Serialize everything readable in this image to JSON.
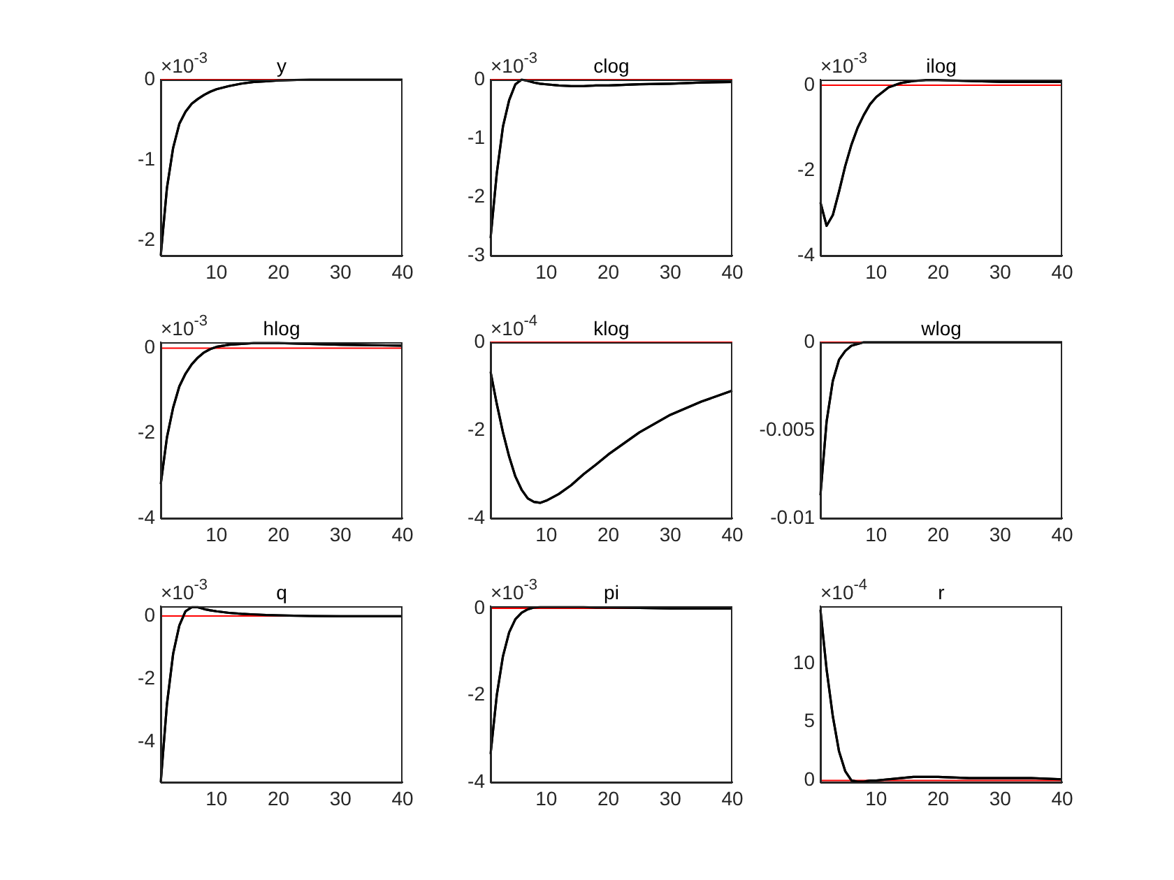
{
  "chart_data": [
    {
      "type": "line",
      "title": "y",
      "annotations": [
        "×10$^{-3}$"
      ],
      "x": [
        1,
        2,
        3,
        4,
        5,
        6,
        7,
        8,
        9,
        10,
        12,
        14,
        16,
        18,
        20,
        25,
        30,
        35,
        40
      ],
      "xlim": [
        1,
        40
      ],
      "xticks": [
        10,
        20,
        30,
        40
      ],
      "ylim": [
        -2.19,
        0
      ],
      "yticks": [
        -2,
        -1,
        0
      ],
      "ref_lines": [
        {
          "axis": "y",
          "value": 0,
          "color": "#ff0000"
        }
      ],
      "series": [
        {
          "color": "#000000",
          "values": [
            -2.19,
            -1.35,
            -0.85,
            -0.55,
            -0.4,
            -0.3,
            -0.24,
            -0.19,
            -0.15,
            -0.12,
            -0.08,
            -0.05,
            -0.03,
            -0.02,
            -0.01,
            0,
            0,
            0,
            0
          ]
        }
      ]
    },
    {
      "type": "line",
      "title": "clog",
      "annotations": [
        "×10$^{-3}$"
      ],
      "x": [
        1,
        2,
        3,
        4,
        5,
        6,
        7,
        8,
        9,
        10,
        12,
        14,
        16,
        18,
        20,
        25,
        30,
        35,
        40
      ],
      "xlim": [
        1,
        40
      ],
      "xticks": [
        10,
        20,
        30,
        40
      ],
      "ylim": [
        -3,
        0
      ],
      "yticks": [
        -3,
        -2,
        -1,
        0
      ],
      "ref_lines": [
        {
          "axis": "y",
          "value": 0,
          "color": "#ff0000"
        }
      ],
      "series": [
        {
          "color": "#000000",
          "values": [
            -2.7,
            -1.6,
            -0.8,
            -0.35,
            -0.08,
            0,
            -0.02,
            -0.05,
            -0.07,
            -0.08,
            -0.1,
            -0.11,
            -0.11,
            -0.1,
            -0.1,
            -0.08,
            -0.07,
            -0.05,
            -0.04
          ]
        }
      ]
    },
    {
      "type": "line",
      "title": "ilog",
      "annotations": [
        "×10$^{-3}$"
      ],
      "x": [
        1,
        2,
        3,
        4,
        5,
        6,
        7,
        8,
        9,
        10,
        12,
        14,
        16,
        18,
        20,
        25,
        30,
        35,
        40
      ],
      "xlim": [
        1,
        40
      ],
      "xticks": [
        10,
        20,
        30,
        40
      ],
      "ylim": [
        -4,
        0.13
      ],
      "yticks": [
        -4,
        -2,
        0
      ],
      "ref_lines": [
        {
          "axis": "y",
          "value": 0,
          "color": "#ff0000"
        }
      ],
      "series": [
        {
          "color": "#000000",
          "values": [
            -2.75,
            -3.3,
            -3.05,
            -2.5,
            -1.9,
            -1.4,
            -1.0,
            -0.7,
            -0.45,
            -0.28,
            -0.05,
            0.05,
            0.1,
            0.12,
            0.12,
            0.1,
            0.08,
            0.08,
            0.08
          ]
        }
      ]
    },
    {
      "type": "line",
      "title": "hlog",
      "annotations": [
        "×10$^{-3}$"
      ],
      "x": [
        1,
        2,
        3,
        4,
        5,
        6,
        7,
        8,
        9,
        10,
        12,
        14,
        16,
        18,
        20,
        25,
        30,
        35,
        40
      ],
      "xlim": [
        1,
        40
      ],
      "xticks": [
        10,
        20,
        30,
        40
      ],
      "ylim": [
        -4,
        0.14
      ],
      "yticks": [
        -4,
        -2,
        0
      ],
      "ref_lines": [
        {
          "axis": "y",
          "value": 0,
          "color": "#ff0000"
        }
      ],
      "series": [
        {
          "color": "#000000",
          "values": [
            -3.2,
            -2.1,
            -1.4,
            -0.9,
            -0.6,
            -0.38,
            -0.22,
            -0.1,
            -0.02,
            0.03,
            0.08,
            0.1,
            0.12,
            0.12,
            0.12,
            0.1,
            0.08,
            0.07,
            0.06
          ]
        }
      ]
    },
    {
      "type": "line",
      "title": "klog",
      "annotations": [
        "×10$^{-4}$"
      ],
      "x": [
        1,
        2,
        3,
        4,
        5,
        6,
        7,
        8,
        9,
        10,
        12,
        14,
        16,
        18,
        20,
        25,
        30,
        35,
        40
      ],
      "xlim": [
        1,
        40
      ],
      "xticks": [
        10,
        20,
        30,
        40
      ],
      "ylim": [
        -4,
        0
      ],
      "yticks": [
        -4,
        -2,
        0
      ],
      "ref_lines": [
        {
          "axis": "y",
          "value": 0,
          "color": "#ff0000"
        }
      ],
      "series": [
        {
          "color": "#000000",
          "values": [
            -0.67,
            -1.4,
            -2.05,
            -2.6,
            -3.05,
            -3.35,
            -3.55,
            -3.63,
            -3.65,
            -3.6,
            -3.45,
            -3.25,
            -3.0,
            -2.78,
            -2.55,
            -2.05,
            -1.65,
            -1.35,
            -1.1
          ]
        }
      ]
    },
    {
      "type": "line",
      "title": "wlog",
      "x": [
        1,
        2,
        3,
        4,
        5,
        6,
        7,
        8,
        9,
        10,
        12,
        14,
        16,
        18,
        20,
        25,
        30,
        35,
        40
      ],
      "xlim": [
        1,
        40
      ],
      "xticks": [
        10,
        20,
        30,
        40
      ],
      "ylim": [
        -0.01,
        0
      ],
      "yticks": [
        -0.01,
        -0.005,
        0
      ],
      "ref_lines": [
        {
          "axis": "y",
          "value": 0,
          "color": "#ff0000"
        }
      ],
      "series": [
        {
          "color": "#000000",
          "values": [
            -0.0087,
            -0.0045,
            -0.0022,
            -0.001,
            -0.0005,
            -0.0002,
            -0.0001,
            0,
            0,
            0,
            0,
            0,
            0,
            0,
            0,
            0,
            0,
            0,
            0
          ]
        }
      ]
    },
    {
      "type": "line",
      "title": "q",
      "annotations": [
        "×10$^{-3}$"
      ],
      "x": [
        1,
        2,
        3,
        4,
        5,
        6,
        7,
        8,
        9,
        10,
        12,
        14,
        16,
        18,
        20,
        25,
        30,
        35,
        40
      ],
      "xlim": [
        1,
        40
      ],
      "xticks": [
        10,
        20,
        30,
        40
      ],
      "ylim": [
        -5.27,
        0.31
      ],
      "yticks": [
        -4,
        -2,
        0
      ],
      "ref_lines": [
        {
          "axis": "y",
          "value": 0,
          "color": "#ff0000"
        }
      ],
      "series": [
        {
          "color": "#000000",
          "values": [
            -5.27,
            -2.8,
            -1.2,
            -0.3,
            0.15,
            0.28,
            0.28,
            0.22,
            0.18,
            0.15,
            0.1,
            0.07,
            0.05,
            0.03,
            0.02,
            0,
            -0.01,
            -0.01,
            -0.01
          ]
        }
      ]
    },
    {
      "type": "line",
      "title": "pi",
      "annotations": [
        "×10$^{-3}$"
      ],
      "x": [
        1,
        2,
        3,
        4,
        5,
        6,
        7,
        8,
        9,
        10,
        12,
        14,
        16,
        18,
        20,
        25,
        30,
        35,
        40
      ],
      "xlim": [
        1,
        40
      ],
      "xticks": [
        10,
        20,
        30,
        40
      ],
      "ylim": [
        -4,
        0.05
      ],
      "yticks": [
        -4,
        -2,
        0
      ],
      "ref_lines": [
        {
          "axis": "y",
          "value": 0,
          "color": "#ff0000"
        }
      ],
      "series": [
        {
          "color": "#000000",
          "values": [
            -3.35,
            -2.0,
            -1.1,
            -0.55,
            -0.25,
            -0.1,
            -0.02,
            0.02,
            0.03,
            0.03,
            0.03,
            0.03,
            0.03,
            0.02,
            0.02,
            0.01,
            0,
            0,
            0
          ]
        }
      ]
    },
    {
      "type": "line",
      "title": "r",
      "annotations": [
        "×10$^{-4}$"
      ],
      "x": [
        1,
        2,
        3,
        4,
        5,
        6,
        7,
        8,
        9,
        10,
        12,
        14,
        16,
        18,
        20,
        25,
        30,
        35,
        40
      ],
      "xlim": [
        1,
        40
      ],
      "xticks": [
        10,
        20,
        30,
        40
      ],
      "ylim": [
        -0.15,
        14.9
      ],
      "yticks": [
        0,
        5,
        10
      ],
      "ref_lines": [
        {
          "axis": "y",
          "value": 0,
          "color": "#ff0000"
        }
      ],
      "series": [
        {
          "color": "#000000",
          "values": [
            14.6,
            9.5,
            5.5,
            2.5,
            0.8,
            0,
            -0.1,
            -0.1,
            0,
            0,
            0.1,
            0.2,
            0.3,
            0.3,
            0.3,
            0.2,
            0.2,
            0.2,
            0.1
          ]
        }
      ]
    }
  ]
}
